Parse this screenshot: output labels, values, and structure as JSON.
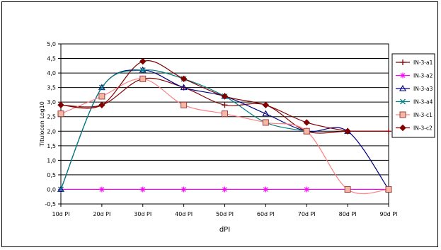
{
  "chart_data": {
    "type": "line",
    "title": "",
    "xlabel": "dPI",
    "ylabel": "Titulocen Log10",
    "categories": [
      "10d PI",
      "20d PI",
      "30d PI",
      "40d PI",
      "50d PI",
      "60d PI",
      "70d PI",
      "80d PI",
      "90d PI"
    ],
    "yticks": [
      "5,0",
      "4,5",
      "4,0",
      "3,5",
      "3,0",
      "2,5",
      "2,0",
      "1,5",
      "1,0",
      "0,5",
      "0,0",
      "-0,5"
    ],
    "ylim": [
      -0.5,
      5.0
    ],
    "grid": true,
    "legend_position": "right",
    "series": [
      {
        "name": "IN-3-a1",
        "color": "#800000",
        "marker": "plus",
        "values": [
          2.9,
          2.9,
          3.8,
          3.5,
          2.9,
          2.9,
          2.0,
          2.0,
          2.0
        ]
      },
      {
        "name": "IN-3-a2",
        "color": "#ff00ff",
        "marker": "star",
        "values": [
          0.0,
          0.0,
          0.0,
          0.0,
          0.0,
          0.0,
          0.0,
          0.0,
          0.0
        ]
      },
      {
        "name": "IN-3-a3",
        "color": "#000080",
        "marker": "triangle",
        "values": [
          0.0,
          3.5,
          4.1,
          3.5,
          3.2,
          2.6,
          2.0,
          2.0,
          0.0
        ]
      },
      {
        "name": "IN-3-a4",
        "color": "#008080",
        "marker": "x",
        "values": [
          0.0,
          3.5,
          4.1,
          3.8,
          3.2,
          2.3,
          2.0,
          null,
          null
        ]
      },
      {
        "name": "IN-3-c1",
        "color": "#ff8080",
        "marker": "square",
        "values": [
          2.6,
          3.2,
          3.8,
          2.9,
          2.6,
          2.3,
          2.0,
          0.0,
          0.0
        ]
      },
      {
        "name": "IN-3-c2",
        "color": "#800000",
        "marker": "diamond",
        "values": [
          2.9,
          2.9,
          4.4,
          3.8,
          3.2,
          2.9,
          2.3,
          2.0,
          null
        ]
      }
    ]
  }
}
